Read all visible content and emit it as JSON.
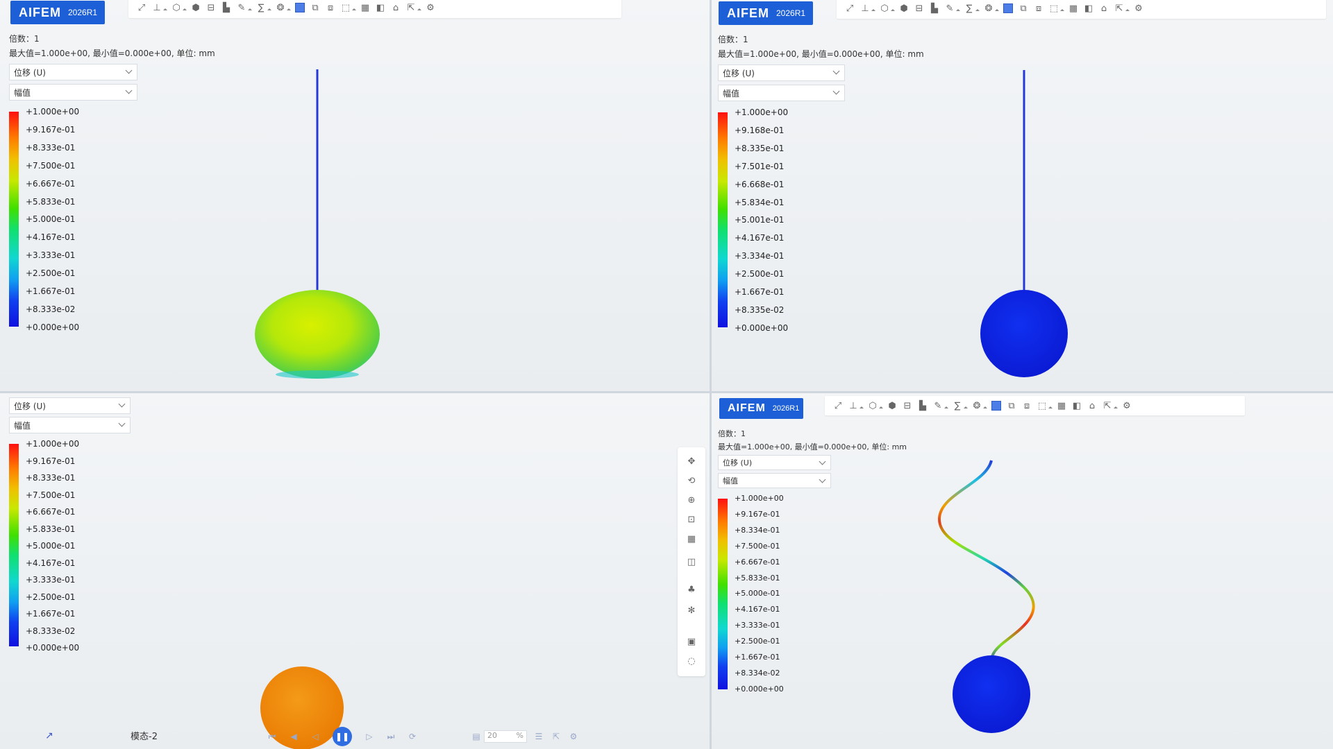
{
  "logo": {
    "name": "AIFEM",
    "version": "2026R1"
  },
  "colors": {
    "brand": "#1c5fd6",
    "toolbar_active": "#4d7de6"
  },
  "toolbar_icons": [
    "fit-view-icon",
    "axes-icon",
    "cube-view-icon",
    "cube-color-icon",
    "clip-plane-icon",
    "chart-icon",
    "probe-icon",
    "curve-icon",
    "node-icon",
    "solid-display-icon",
    "copy-view-icon",
    "overlay-view-icon",
    "select-icon",
    "grid-layout-icon",
    "split-icon",
    "basket-icon",
    "export-icon",
    "settings-icon"
  ],
  "panels": [
    {
      "scale_text": "倍数：1",
      "range_text": "最大值=1.000e+00, 最小值=0.000e+00, 单位: mm",
      "result_select": "位移 (U)",
      "component_select": "幅值",
      "legend_labels": [
        "+1.000e+00",
        "+9.167e-01",
        "+8.333e-01",
        "+7.500e-01",
        "+6.667e-01",
        "+5.833e-01",
        "+5.000e-01",
        "+4.167e-01",
        "+3.333e-01",
        "+2.500e-01",
        "+1.667e-01",
        "+8.333e-02",
        "+0.000e+00"
      ]
    },
    {
      "scale_text": "倍数：1",
      "range_text": "最大值=1.000e+00, 最小值=0.000e+00, 单位: mm",
      "result_select": "位移 (U)",
      "component_select": "幅值",
      "legend_labels": [
        "+1.000e+00",
        "+9.168e-01",
        "+8.335e-01",
        "+7.501e-01",
        "+6.668e-01",
        "+5.834e-01",
        "+5.001e-01",
        "+4.167e-01",
        "+3.334e-01",
        "+2.500e-01",
        "+1.667e-01",
        "+8.335e-02",
        "+0.000e+00"
      ]
    },
    {
      "result_select": "位移 (U)",
      "component_select": "幅值",
      "legend_labels": [
        "+1.000e+00",
        "+9.167e-01",
        "+8.333e-01",
        "+7.500e-01",
        "+6.667e-01",
        "+5.833e-01",
        "+5.000e-01",
        "+4.167e-01",
        "+3.333e-01",
        "+2.500e-01",
        "+1.667e-01",
        "+8.333e-02",
        "+0.000e+00"
      ],
      "mode_label": "模态-2",
      "frame_rate": "20",
      "frame_unit": "%"
    },
    {
      "scale_text": "倍数：1",
      "range_text": "最大值=1.000e+00, 最小值=0.000e+00, 单位: mm",
      "result_select": "位移 (U)",
      "component_select": "幅值",
      "legend_labels": [
        "+1.000e+00",
        "+9.167e-01",
        "+8.334e-01",
        "+7.500e-01",
        "+6.667e-01",
        "+5.833e-01",
        "+5.000e-01",
        "+4.167e-01",
        "+3.333e-01",
        "+2.500e-01",
        "+1.667e-01",
        "+8.334e-02",
        "+0.000e+00"
      ]
    }
  ]
}
